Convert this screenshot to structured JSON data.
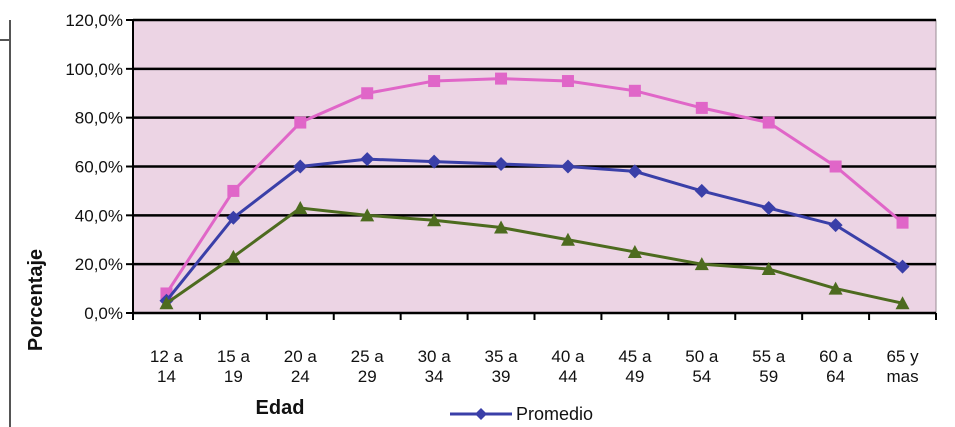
{
  "chart_data": {
    "type": "line",
    "xlabel": "Edad",
    "ylabel": "Porcentaje",
    "ylim": [
      0,
      120
    ],
    "y_ticks": [
      "0,0%",
      "20,0%",
      "40,0%",
      "60,0%",
      "80,0%",
      "100,0%",
      "120,0%"
    ],
    "categories": [
      [
        "12 a",
        "14"
      ],
      [
        "15 a",
        "19"
      ],
      [
        "20 a",
        "24"
      ],
      [
        "25 a",
        "29"
      ],
      [
        "30 a",
        "34"
      ],
      [
        "35 a",
        "39"
      ],
      [
        "40 a",
        "44"
      ],
      [
        "45 a",
        "49"
      ],
      [
        "50 a",
        "54"
      ],
      [
        "55 a",
        "59"
      ],
      [
        "60 a",
        "64"
      ],
      [
        "65 y",
        "mas"
      ]
    ],
    "grid": true,
    "plot_background": "#ecd4e4",
    "series": [
      {
        "color": "#e066c8",
        "marker": "square",
        "values": [
          8,
          50,
          78,
          90,
          95,
          96,
          95,
          91,
          84,
          78,
          60,
          37
        ]
      },
      {
        "name": "Promedio",
        "color": "#3a3fa8",
        "marker": "diamond",
        "values": [
          5,
          39,
          60,
          63,
          62,
          61,
          60,
          58,
          50,
          43,
          36,
          19
        ]
      },
      {
        "color": "#4d6b1f",
        "marker": "triangle",
        "values": [
          4,
          23,
          43,
          40,
          38,
          35,
          30,
          25,
          20,
          18,
          10,
          4
        ]
      }
    ],
    "legend": {
      "visible_entry": "Promedio",
      "position": "bottom"
    }
  }
}
